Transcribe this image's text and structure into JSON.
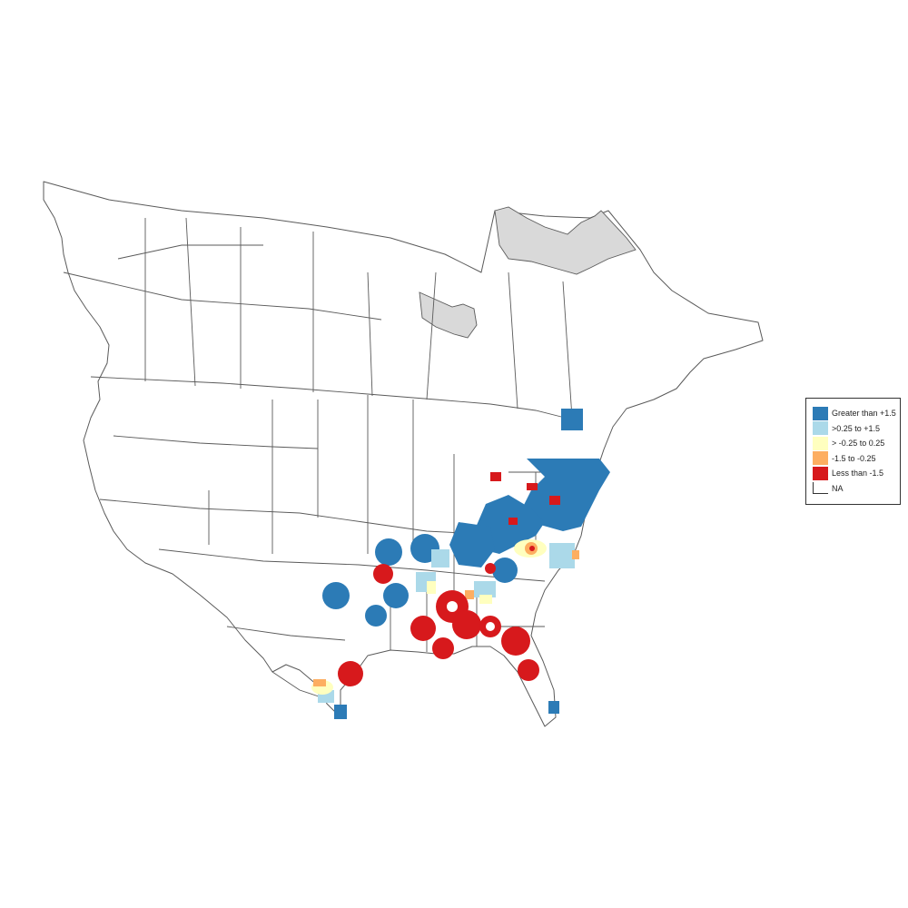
{
  "legend": {
    "items": [
      {
        "label": "Greater than +1.5",
        "color": "#2c7bb6"
      },
      {
        "label": ">0.25 to +1.5",
        "color": "#abd9e9"
      },
      {
        "label": "> -0.25 to 0.25",
        "color": "#ffffbf"
      },
      {
        "label": "-1.5 to -0.25",
        "color": "#fdae61"
      },
      {
        "label": "Less than -1.5",
        "color": "#d7191c"
      },
      {
        "label": "NA",
        "color": "#ffffff"
      }
    ]
  },
  "map": {
    "na_color": "#d9d9d9",
    "region": "North America (USA, Canada, Mexico)"
  }
}
